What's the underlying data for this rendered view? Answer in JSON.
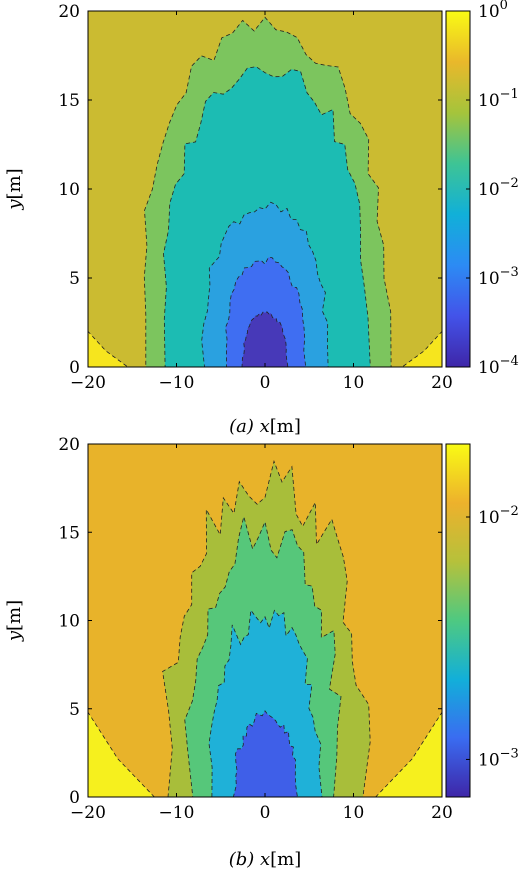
{
  "chart_data": [
    {
      "type": "heatmap",
      "panel_label": "(a)",
      "xlabel": "x[m]",
      "ylabel": "y[m]",
      "xlim": [
        -20,
        20
      ],
      "ylim": [
        0,
        20
      ],
      "x_ticks": [
        "−20",
        "−10",
        "0",
        "10",
        "20"
      ],
      "y_ticks": [
        "0",
        "5",
        "10",
        "15",
        "20"
      ],
      "colorbar": {
        "scale": "log",
        "range": [
          0.0001,
          1
        ],
        "ticks": [
          {
            "base": "10",
            "exp": "0",
            "value": 1
          },
          {
            "base": "10",
            "exp": "−1",
            "value": 0.1
          },
          {
            "base": "10",
            "exp": "−2",
            "value": 0.01
          },
          {
            "base": "10",
            "exp": "−3",
            "value": 0.001
          },
          {
            "base": "10",
            "exp": "−4",
            "value": 0.0001
          }
        ]
      },
      "contour_levels": [
        {
          "level": 0.3,
          "color": "#f6e51e",
          "approx_extent": "bottom corners"
        },
        {
          "level": 0.1,
          "color": "#cbbb31",
          "approx_extent": "background"
        },
        {
          "level": 0.03,
          "color": "#7cc55e",
          "half_width_m": 14,
          "top_m": 19
        },
        {
          "level": 0.01,
          "color": "#1cbcb3",
          "half_width_m": 11.5,
          "top_m": 17
        },
        {
          "level": 0.003,
          "color": "#2aa1e0",
          "half_width_m": 7,
          "top_m": 9
        },
        {
          "level": 0.001,
          "color": "#3f6ef2",
          "half_width_m": 4.5,
          "top_m": 6
        },
        {
          "level": 0.0003,
          "color": "#4739b8",
          "half_width_m": 2.5,
          "top_m": 3
        }
      ]
    },
    {
      "type": "heatmap",
      "panel_label": "(b)",
      "xlabel": "x[m]",
      "ylabel": "y[m]",
      "xlim": [
        -20,
        20
      ],
      "ylim": [
        0,
        20
      ],
      "x_ticks": [
        "−20",
        "−10",
        "0",
        "10",
        "20"
      ],
      "y_ticks": [
        "0",
        "5",
        "10",
        "15",
        "20"
      ],
      "colorbar": {
        "scale": "log",
        "range": [
          0.0007,
          0.02
        ],
        "ticks": [
          {
            "base": "10",
            "exp": "−2",
            "value": 0.01
          },
          {
            "base": "10",
            "exp": "−3",
            "value": 0.001
          }
        ]
      },
      "contour_levels": [
        {
          "level": 0.02,
          "color": "#f6f01e",
          "approx_extent": "bottom corners"
        },
        {
          "level": 0.012,
          "color": "#e8b32a",
          "approx_extent": "background"
        },
        {
          "level": 0.007,
          "color": "#a8be3a",
          "half_width_m": 11,
          "top_m": 18
        },
        {
          "level": 0.004,
          "color": "#56c77a",
          "half_width_m": 8.5,
          "top_m": 15
        },
        {
          "level": 0.0025,
          "color": "#1fb1d8",
          "half_width_m": 6,
          "top_m": 10.5
        },
        {
          "level": 0.0012,
          "color": "#3f5fe8",
          "half_width_m": 3.5,
          "top_m": 4.5
        }
      ]
    }
  ]
}
